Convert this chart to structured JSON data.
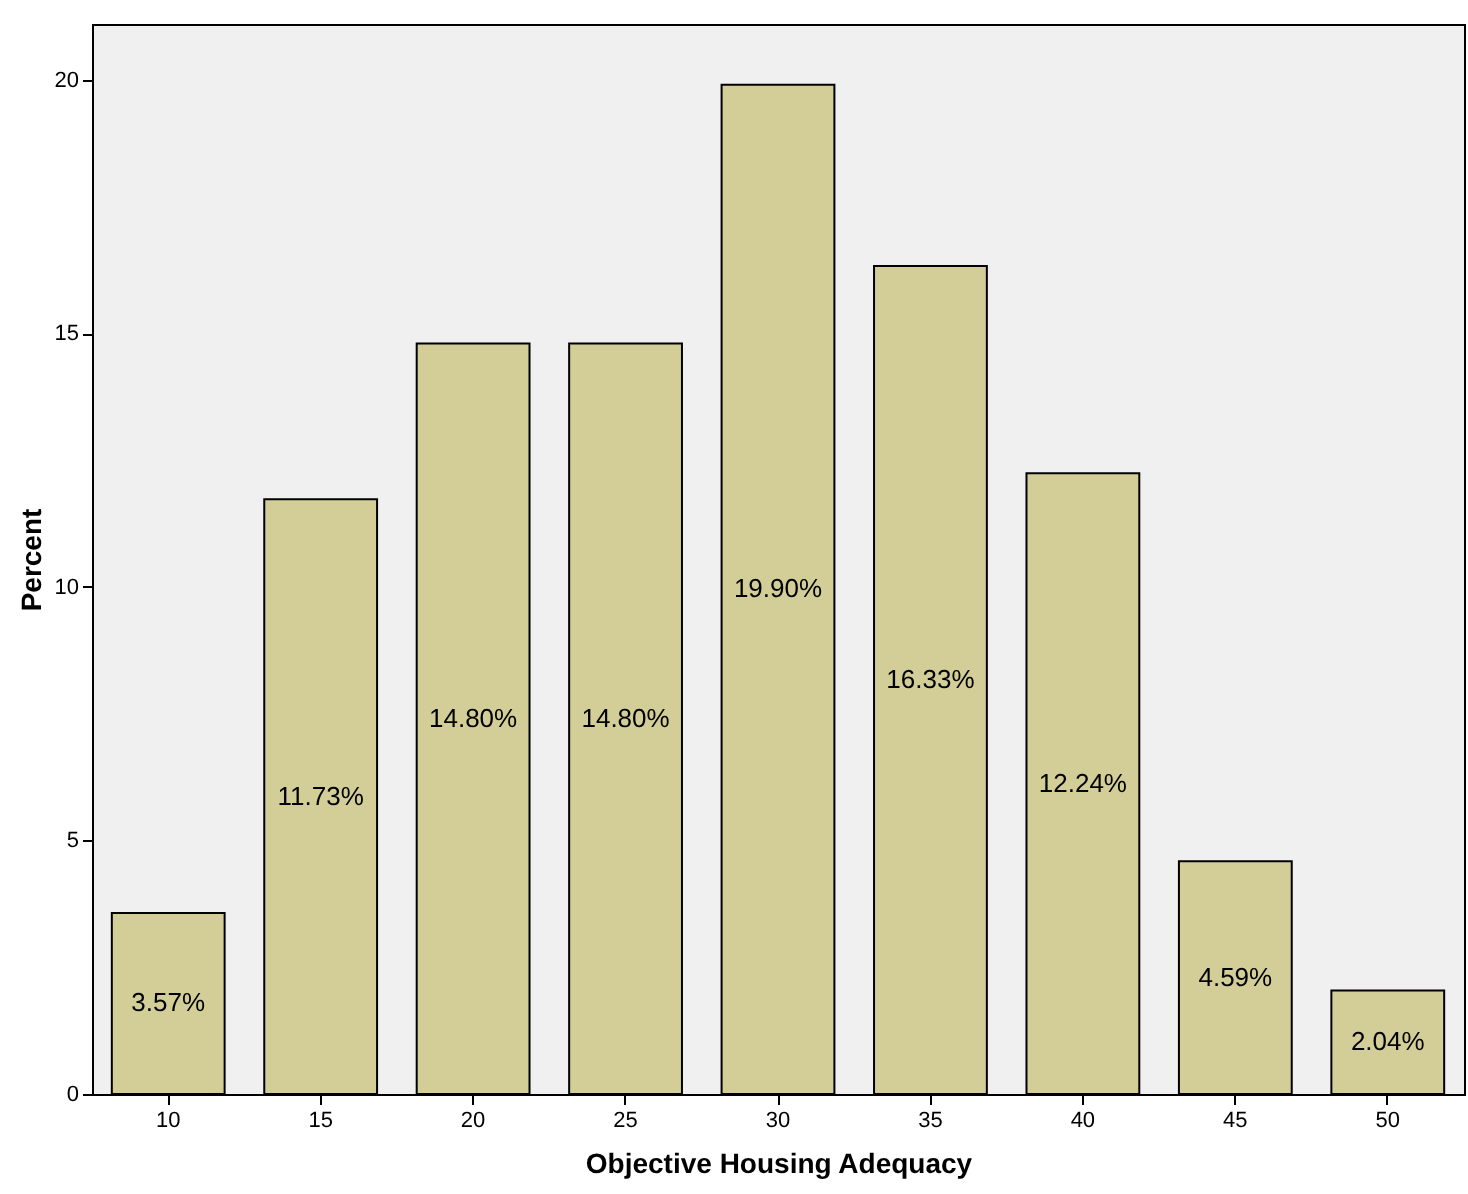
{
  "chart_data": {
    "type": "bar",
    "xlabel": "Objective Housing Adequacy",
    "ylabel": "Percent",
    "categories": [
      "10",
      "15",
      "20",
      "25",
      "30",
      "35",
      "40",
      "45",
      "50"
    ],
    "values": [
      3.57,
      11.73,
      14.8,
      14.8,
      19.9,
      16.33,
      12.24,
      4.59,
      2.04
    ],
    "value_labels": [
      "3.57%",
      "11.73%",
      "14.80%",
      "14.80%",
      "19.90%",
      "16.33%",
      "12.24%",
      "4.59%",
      "2.04%"
    ],
    "color": "#d3ce97",
    "ylim": [
      0,
      21.1
    ],
    "yticks": [
      0,
      5,
      10,
      15,
      20
    ],
    "grid": false
  }
}
